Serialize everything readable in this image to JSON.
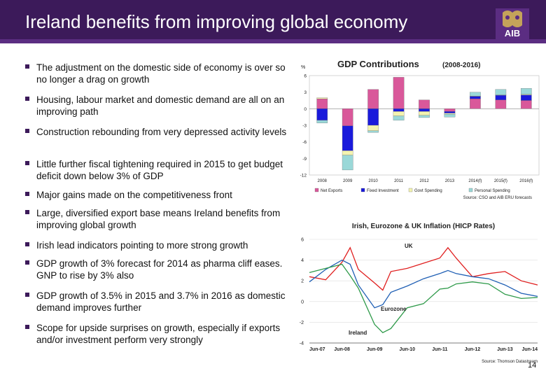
{
  "header": {
    "title": "Ireland benefits from improving global economy",
    "logo_text": "AIB"
  },
  "bullets": [
    "The adjustment on the domestic side of economy is over so no longer a drag on growth",
    "Housing, labour market and domestic demand are all on an improving path",
    "Construction rebounding from very depressed activity levels",
    "Little further fiscal tightening required in 2015 to get budget deficit down below 3% of GDP",
    "Major gains made on the competitiveness front",
    "Large, diversified export base means Ireland benefits from improving global growth",
    "Irish lead indicators pointing to more strong growth",
    "GDP growth of 3% forecast for 2014 as pharma cliff eases. GNP to rise by 3% also",
    "GDP growth of 3.5% in 2015 and 3.7% in 2016 as domestic demand improves further",
    "Scope for upside surprises on growth, especially if exports and/or investment perform very strongly"
  ],
  "page_number": "14",
  "colors": {
    "header_bg": "#3c1a5a",
    "net_exports": "#d9589a",
    "fixed_investment": "#1a1adb",
    "govt_spending": "#f3f3b0",
    "personal_spending": "#9ad8d8",
    "uk": "#e01f1f",
    "eurozone": "#1f5fb4",
    "ireland": "#2f9a4a"
  },
  "chart_data": [
    {
      "type": "bar",
      "title": "GDP Contributions",
      "subtitle": "(2008-2016)",
      "ylabel": "%",
      "ylim": [
        -12,
        6
      ],
      "yticks": [
        6,
        3,
        0,
        -3,
        -6,
        -9,
        -12
      ],
      "categories": [
        "2008",
        "2009",
        "2010",
        "2011",
        "2012",
        "2013",
        "2014(f)",
        "2015(f)",
        "2016(f)"
      ],
      "series": [
        {
          "name": "Net Exports",
          "values": [
            1.8,
            -3.1,
            3.5,
            5.7,
            1.6,
            -0.5,
            1.8,
            1.6,
            1.5
          ]
        },
        {
          "name": "Fixed Investment",
          "values": [
            -2.1,
            -4.5,
            -3.0,
            -0.5,
            -0.5,
            -0.3,
            0.5,
            0.9,
            1.0
          ]
        },
        {
          "name": "Govt Spending",
          "values": [
            0.2,
            -0.8,
            -1.0,
            -0.8,
            -0.7,
            -0.2,
            0.0,
            0.0,
            0.1
          ]
        },
        {
          "name": "Personal Spending",
          "values": [
            -0.5,
            -2.7,
            -0.3,
            -0.8,
            -0.4,
            -0.5,
            0.7,
            1.0,
            1.1
          ]
        }
      ],
      "legend": [
        "Net Exports",
        "Fixed Investment",
        "Govt Spending",
        "Personal Spending"
      ],
      "source": "Source: CSO and AIB ERU forecasts"
    },
    {
      "type": "line",
      "title": "Irish, Eurozone & UK Inflation (HICP Rates)",
      "ylim": [
        -4,
        6
      ],
      "yticks": [
        6,
        4,
        2,
        0,
        -2,
        -4
      ],
      "xticks": [
        "Jun-07",
        "Jun-08",
        "Jun-09",
        "Jun-10",
        "Jun-11",
        "Jun-12",
        "Jun-13",
        "Jun-14"
      ],
      "series": [
        {
          "name": "UK",
          "x": [
            "Jun-07",
            "Dec-07",
            "Jun-08",
            "Sep-08",
            "Dec-08",
            "Jun-09",
            "Sep-09",
            "Dec-09",
            "Jun-10",
            "Dec-10",
            "Jun-11",
            "Sep-11",
            "Dec-11",
            "Jun-12",
            "Dec-12",
            "Jun-13",
            "Dec-13",
            "Jun-14"
          ],
          "y": [
            2.4,
            2.1,
            3.8,
            5.2,
            3.1,
            1.8,
            1.1,
            2.9,
            3.2,
            3.7,
            4.2,
            5.2,
            4.2,
            2.4,
            2.7,
            2.9,
            2.0,
            1.6
          ]
        },
        {
          "name": "Eurozone",
          "x": [
            "Jun-07",
            "Dec-07",
            "Jun-08",
            "Sep-08",
            "Dec-08",
            "Jun-09",
            "Sep-09",
            "Dec-09",
            "Jun-10",
            "Dec-10",
            "Jun-11",
            "Sep-11",
            "Dec-11",
            "Jun-12",
            "Dec-12",
            "Jun-13",
            "Dec-13",
            "Jun-14"
          ],
          "y": [
            1.9,
            3.1,
            4.0,
            3.6,
            1.6,
            -0.6,
            -0.3,
            0.9,
            1.5,
            2.2,
            2.7,
            3.0,
            2.7,
            2.4,
            2.2,
            1.6,
            0.8,
            0.5
          ]
        },
        {
          "name": "Ireland",
          "x": [
            "Jun-07",
            "Dec-07",
            "Jun-08",
            "Sep-08",
            "Dec-08",
            "Jun-09",
            "Sep-09",
            "Dec-09",
            "Jun-10",
            "Dec-10",
            "Jun-11",
            "Sep-11",
            "Dec-11",
            "Jun-12",
            "Dec-12",
            "Jun-13",
            "Dec-13",
            "Jun-14"
          ],
          "y": [
            2.8,
            3.2,
            3.6,
            2.5,
            1.3,
            -2.2,
            -3.0,
            -2.6,
            -0.6,
            -0.2,
            1.2,
            1.3,
            1.7,
            1.9,
            1.7,
            0.7,
            0.3,
            0.4
          ]
        }
      ],
      "annotations": [
        "UK",
        "Eurozone",
        "Ireland"
      ],
      "source": "Source: Thomson Datastream"
    }
  ]
}
